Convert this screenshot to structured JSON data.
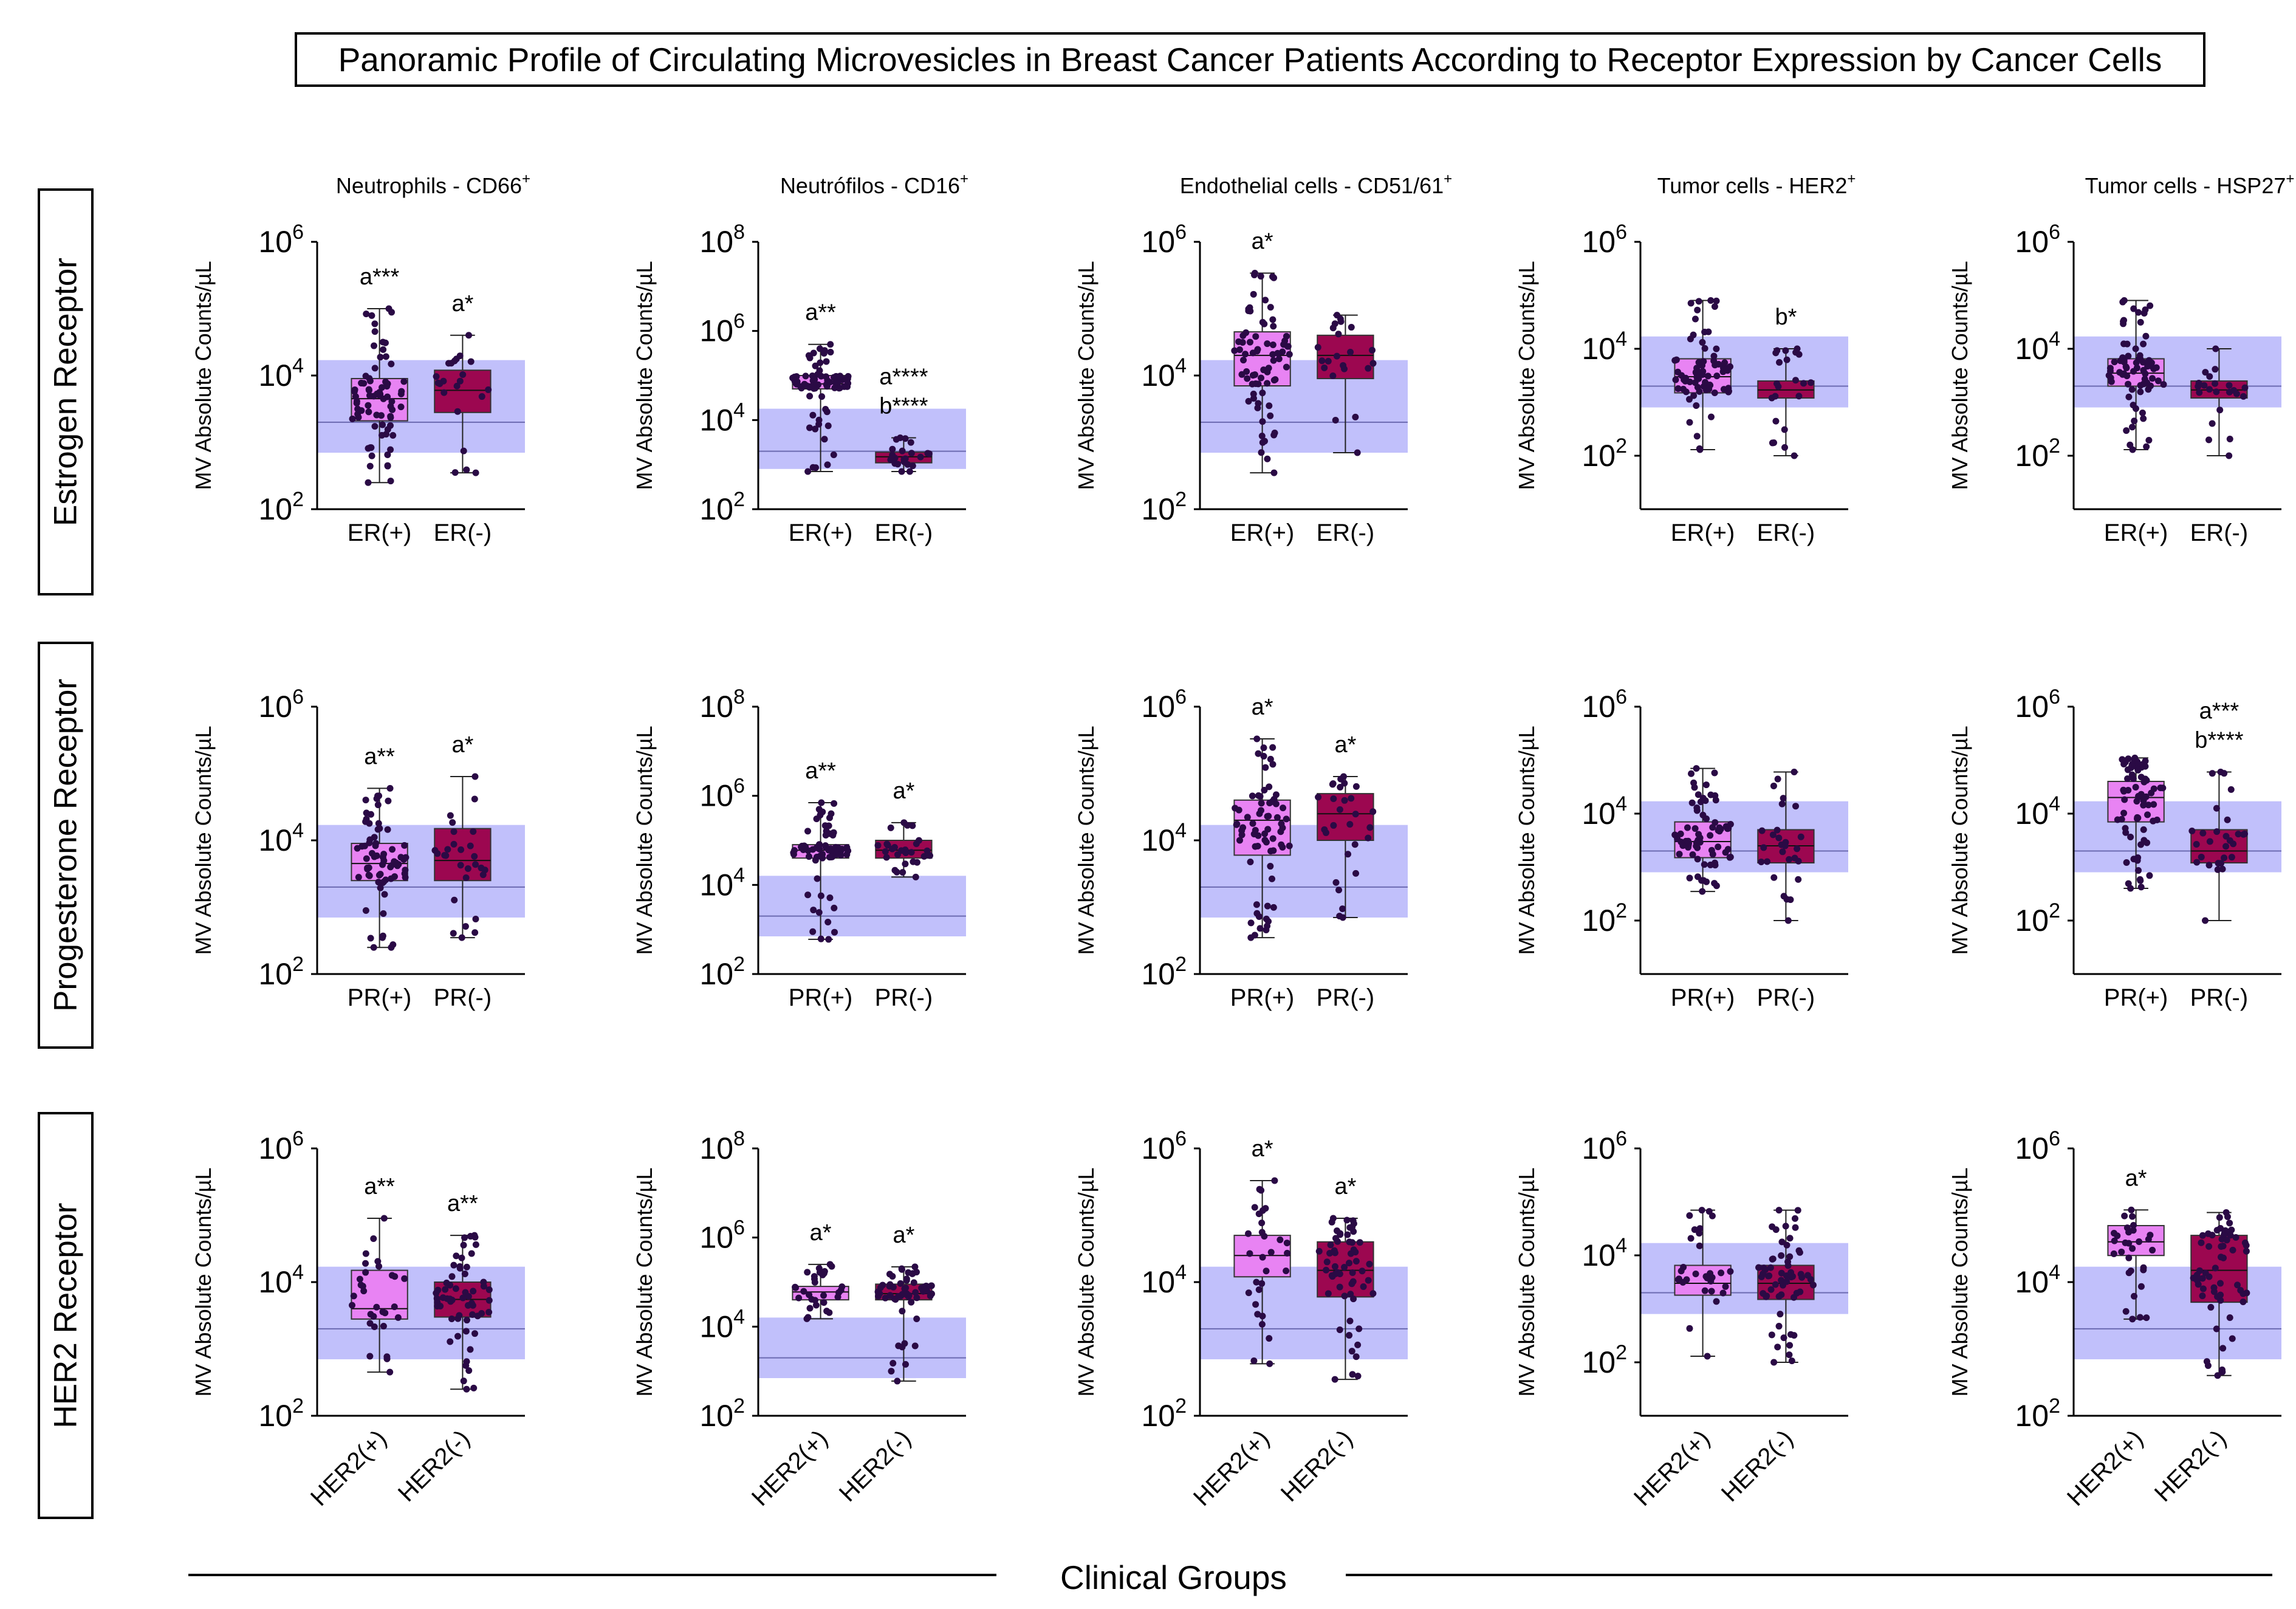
{
  "title": "Panoramic Profile of Circulating Microvesicles in Breast Cancer Patients According to Receptor Expression by Cancer Cells",
  "x_axis_group_label": "Clinical Groups",
  "colors": {
    "positive": "#e883f3",
    "negative": "#9c0750",
    "dots": "#2a0a45",
    "reference_band": "#bab9fb",
    "reference_line": "#6b6ab0"
  },
  "rows": [
    {
      "label": "Estrogen Receptor",
      "groups": [
        "ER(+)",
        "ER(-)"
      ]
    },
    {
      "label": "Progesterone Receptor",
      "groups": [
        "PR(+)",
        "PR(-)"
      ]
    },
    {
      "label": "HER2 Receptor",
      "groups": [
        "HER2(+)",
        "HER2(-)"
      ]
    }
  ],
  "columns": [
    {
      "title": "Neutrophils - CD66",
      "sup": "+"
    },
    {
      "title": "Neutrófilos - CD16",
      "sup": "+"
    },
    {
      "title": "Endothelial cells - CD51/61",
      "sup": "+"
    },
    {
      "title": "Tumor cells - HER2",
      "sup": "+"
    },
    {
      "title": "Tumor cells - HSP27",
      "sup": "+"
    }
  ],
  "chart_data": [
    {
      "type": "box",
      "row": 0,
      "col": 0,
      "ylabel": "MV Absolute Counts/µL",
      "yscale": "log10",
      "ylim_exp": [
        2,
        6
      ],
      "ticks": [
        "2",
        "4",
        "6"
      ],
      "reference": {
        "low": 700,
        "median": 2000,
        "high": 17000
      },
      "groups": [
        {
          "name": "ER(+)",
          "min": 250,
          "q1": 2100,
          "median": 4500,
          "q3": 9000,
          "max": 100000,
          "n": 75,
          "annotation": [
            "a***"
          ]
        },
        {
          "name": "ER(-)",
          "min": 350,
          "q1": 2800,
          "median": 6000,
          "q3": 12000,
          "max": 40000,
          "n": 22,
          "annotation": [
            "a*"
          ]
        }
      ]
    },
    {
      "type": "box",
      "row": 0,
      "col": 1,
      "ylabel": "MV Absolute Counts/µL",
      "yscale": "log10",
      "ylim_exp": [
        2,
        8
      ],
      "ticks": [
        "2",
        "4",
        "6",
        "8"
      ],
      "reference": {
        "low": 800,
        "median": 2000,
        "high": 18000
      },
      "groups": [
        {
          "name": "ER(+)",
          "min": 700,
          "q1": 50000,
          "median": 65000,
          "q3": 100000,
          "max": 500000,
          "n": 75,
          "annotation": [
            "a**"
          ]
        },
        {
          "name": "ER(-)",
          "min": 700,
          "q1": 1100,
          "median": 1500,
          "q3": 1900,
          "max": 4000,
          "n": 22,
          "annotation": [
            "a****",
            "b****"
          ]
        }
      ]
    },
    {
      "type": "box",
      "row": 0,
      "col": 2,
      "ylabel": "MV Absolute Counts/µL",
      "yscale": "log10",
      "ylim_exp": [
        2,
        6
      ],
      "ticks": [
        "2",
        "4",
        "6"
      ],
      "reference": {
        "low": 700,
        "median": 2000,
        "high": 17000
      },
      "groups": [
        {
          "name": "ER(+)",
          "min": 350,
          "q1": 7000,
          "median": 20000,
          "q3": 45000,
          "max": 340000,
          "n": 75,
          "annotation": [
            "a*"
          ]
        },
        {
          "name": "ER(-)",
          "min": 700,
          "q1": 9000,
          "median": 20000,
          "q3": 40000,
          "max": 80000,
          "n": 22,
          "annotation": []
        }
      ]
    },
    {
      "type": "box",
      "row": 0,
      "col": 3,
      "ylabel": "MV Absolute Counts/µL",
      "yscale": "log10",
      "ylim_exp": [
        1,
        6
      ],
      "ticks": [
        "2",
        "4",
        "6"
      ],
      "reference": {
        "low": 800,
        "median": 2000,
        "high": 17000
      },
      "groups": [
        {
          "name": "ER(+)",
          "min": 130,
          "q1": 1500,
          "median": 3000,
          "q3": 6500,
          "max": 80000,
          "n": 75,
          "annotation": []
        },
        {
          "name": "ER(-)",
          "min": 100,
          "q1": 1200,
          "median": 1700,
          "q3": 2500,
          "max": 10000,
          "n": 22,
          "annotation": [
            "b*"
          ]
        }
      ]
    },
    {
      "type": "box",
      "row": 0,
      "col": 4,
      "ylabel": "MV Absolute Counts/µL",
      "yscale": "log10",
      "ylim_exp": [
        1,
        6
      ],
      "ticks": [
        "2",
        "4",
        "6"
      ],
      "reference": {
        "low": 800,
        "median": 2000,
        "high": 17000
      },
      "groups": [
        {
          "name": "ER(+)",
          "min": 130,
          "q1": 2000,
          "median": 3500,
          "q3": 6500,
          "max": 80000,
          "n": 75,
          "annotation": []
        },
        {
          "name": "ER(-)",
          "min": 100,
          "q1": 1200,
          "median": 1700,
          "q3": 2500,
          "max": 10000,
          "n": 22,
          "annotation": []
        }
      ]
    },
    {
      "type": "box",
      "row": 1,
      "col": 0,
      "ylabel": "MV Absolute Counts/µL",
      "yscale": "log10",
      "ylim_exp": [
        2,
        6
      ],
      "ticks": [
        "2",
        "4",
        "6"
      ],
      "reference": {
        "low": 700,
        "median": 2000,
        "high": 17000
      },
      "groups": [
        {
          "name": "PR(+)",
          "min": 250,
          "q1": 2500,
          "median": 4500,
          "q3": 9000,
          "max": 60000,
          "n": 70,
          "annotation": [
            "a**"
          ]
        },
        {
          "name": "PR(-)",
          "min": 350,
          "q1": 2500,
          "median": 5000,
          "q3": 15000,
          "max": 90000,
          "n": 28,
          "annotation": [
            "a*"
          ]
        }
      ]
    },
    {
      "type": "box",
      "row": 1,
      "col": 1,
      "ylabel": "MV Absolute Counts/µL",
      "yscale": "log10",
      "ylim_exp": [
        2,
        8
      ],
      "ticks": [
        "2",
        "4",
        "6",
        "8"
      ],
      "reference": {
        "low": 700,
        "median": 2000,
        "high": 16000
      },
      "groups": [
        {
          "name": "PR(+)",
          "min": 600,
          "q1": 40000,
          "median": 60000,
          "q3": 80000,
          "max": 700000,
          "n": 70,
          "annotation": [
            "a**"
          ]
        },
        {
          "name": "PR(-)",
          "min": 15000,
          "q1": 40000,
          "median": 60000,
          "q3": 100000,
          "max": 250000,
          "n": 28,
          "annotation": [
            "a*"
          ]
        }
      ]
    },
    {
      "type": "box",
      "row": 1,
      "col": 2,
      "ylabel": "MV Absolute Counts/µL",
      "yscale": "log10",
      "ylim_exp": [
        2,
        6
      ],
      "ticks": [
        "2",
        "4",
        "6"
      ],
      "reference": {
        "low": 700,
        "median": 2000,
        "high": 17000
      },
      "groups": [
        {
          "name": "PR(+)",
          "min": 350,
          "q1": 6000,
          "median": 20000,
          "q3": 40000,
          "max": 330000,
          "n": 70,
          "annotation": [
            "a*"
          ]
        },
        {
          "name": "PR(-)",
          "min": 700,
          "q1": 10000,
          "median": 25000,
          "q3": 50000,
          "max": 90000,
          "n": 28,
          "annotation": [
            "a*"
          ]
        }
      ]
    },
    {
      "type": "box",
      "row": 1,
      "col": 3,
      "ylabel": "MV Absolute Counts/µL",
      "yscale": "log10",
      "ylim_exp": [
        1,
        6
      ],
      "ticks": [
        "2",
        "4",
        "6"
      ],
      "reference": {
        "low": 800,
        "median": 2000,
        "high": 17000
      },
      "groups": [
        {
          "name": "PR(+)",
          "min": 350,
          "q1": 1500,
          "median": 3000,
          "q3": 7000,
          "max": 70000,
          "n": 70,
          "annotation": []
        },
        {
          "name": "PR(-)",
          "min": 100,
          "q1": 1200,
          "median": 2500,
          "q3": 5000,
          "max": 60000,
          "n": 28,
          "annotation": []
        }
      ]
    },
    {
      "type": "box",
      "row": 1,
      "col": 4,
      "ylabel": "MV Absolute Counts/µL",
      "yscale": "log10",
      "ylim_exp": [
        1,
        6
      ],
      "ticks": [
        "2",
        "4",
        "6"
      ],
      "reference": {
        "low": 800,
        "median": 2000,
        "high": 17000
      },
      "groups": [
        {
          "name": "PR(+)",
          "min": 400,
          "q1": 7000,
          "median": 20000,
          "q3": 40000,
          "max": 110000,
          "n": 70,
          "annotation": []
        },
        {
          "name": "PR(-)",
          "min": 100,
          "q1": 1200,
          "median": 2000,
          "q3": 5000,
          "max": 60000,
          "n": 28,
          "annotation": [
            "a***",
            "b****"
          ]
        }
      ]
    },
    {
      "type": "box",
      "row": 2,
      "col": 0,
      "ylabel": "MV Absolute Counts/µL",
      "yscale": "log10",
      "ylim_exp": [
        2,
        6
      ],
      "ticks": [
        "2",
        "4",
        "6"
      ],
      "reference": {
        "low": 700,
        "median": 2000,
        "high": 17000
      },
      "groups": [
        {
          "name": "HER2(+)",
          "min": 450,
          "q1": 2800,
          "median": 4000,
          "q3": 15000,
          "max": 90000,
          "n": 30,
          "annotation": [
            "a**"
          ]
        },
        {
          "name": "HER2(-)",
          "min": 250,
          "q1": 3000,
          "median": 5500,
          "q3": 10000,
          "max": 50000,
          "n": 60,
          "annotation": [
            "a**"
          ]
        }
      ]
    },
    {
      "type": "box",
      "row": 2,
      "col": 1,
      "ylabel": "MV Absolute Counts/µL",
      "yscale": "log10",
      "ylim_exp": [
        2,
        8
      ],
      "ticks": [
        "2",
        "4",
        "6",
        "8"
      ],
      "reference": {
        "low": 700,
        "median": 2000,
        "high": 16000
      },
      "groups": [
        {
          "name": "HER2(+)",
          "min": 15000,
          "q1": 40000,
          "median": 60000,
          "q3": 80000,
          "max": 250000,
          "n": 30,
          "annotation": [
            "a*"
          ]
        },
        {
          "name": "HER2(-)",
          "min": 600,
          "q1": 40000,
          "median": 55000,
          "q3": 90000,
          "max": 220000,
          "n": 60,
          "annotation": [
            "a*"
          ]
        }
      ]
    },
    {
      "type": "box",
      "row": 2,
      "col": 2,
      "ylabel": "MV Absolute Counts/µL",
      "yscale": "log10",
      "ylim_exp": [
        2,
        6
      ],
      "ticks": [
        "2",
        "4",
        "6"
      ],
      "reference": {
        "low": 700,
        "median": 2000,
        "high": 17000
      },
      "groups": [
        {
          "name": "HER2(+)",
          "min": 600,
          "q1": 12000,
          "median": 25000,
          "q3": 50000,
          "max": 330000,
          "n": 30,
          "annotation": [
            "a*"
          ]
        },
        {
          "name": "HER2(-)",
          "min": 350,
          "q1": 6000,
          "median": 15000,
          "q3": 40000,
          "max": 90000,
          "n": 60,
          "annotation": [
            "a*"
          ]
        }
      ]
    },
    {
      "type": "box",
      "row": 2,
      "col": 3,
      "ylabel": "MV Absolute Counts/µL",
      "yscale": "log10",
      "ylim_exp": [
        1,
        6
      ],
      "ticks": [
        "2",
        "4",
        "6"
      ],
      "reference": {
        "low": 800,
        "median": 2000,
        "high": 17000
      },
      "groups": [
        {
          "name": "HER2(+)",
          "min": 130,
          "q1": 1800,
          "median": 3000,
          "q3": 6500,
          "max": 70000,
          "n": 30,
          "annotation": []
        },
        {
          "name": "HER2(-)",
          "min": 100,
          "q1": 1500,
          "median": 3000,
          "q3": 6500,
          "max": 70000,
          "n": 60,
          "annotation": []
        }
      ]
    },
    {
      "type": "box",
      "row": 2,
      "col": 4,
      "ylabel": "MV Absolute Counts/µL",
      "yscale": "log10",
      "ylim_exp": [
        2,
        6
      ],
      "ticks": [
        "2",
        "4",
        "6"
      ],
      "reference": {
        "low": 700,
        "median": 2000,
        "high": 17000
      },
      "groups": [
        {
          "name": "HER2(+)",
          "min": 2800,
          "q1": 25000,
          "median": 40000,
          "q3": 70000,
          "max": 120000,
          "n": 30,
          "annotation": [
            "a*"
          ]
        },
        {
          "name": "HER2(-)",
          "min": 400,
          "q1": 5000,
          "median": 15000,
          "q3": 50000,
          "max": 110000,
          "n": 60,
          "annotation": []
        }
      ]
    }
  ]
}
